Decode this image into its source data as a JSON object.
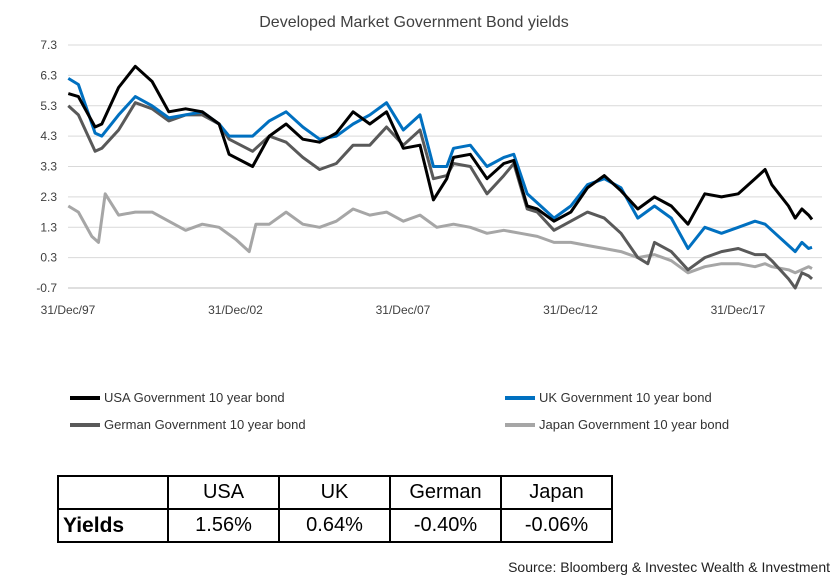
{
  "chart_data": {
    "type": "line",
    "title": "Developed Market Government Bond yields",
    "x_ticks": [
      "31/Dec/97",
      "31/Dec/02",
      "31/Dec/07",
      "31/Dec/12",
      "31/Dec/17"
    ],
    "y_ticks": [
      "7.3",
      "6.3",
      "5.3",
      "4.3",
      "3.3",
      "2.3",
      "1.3",
      "0.3",
      "-0.7"
    ],
    "ylim": [
      -0.7,
      7.3
    ],
    "x_range_years": [
      1997.99,
      2020.5
    ],
    "grid": "horizontal",
    "legend_position": "bottom",
    "series": [
      {
        "name": "USA Government 10 year bond",
        "color": "#000000",
        "points": [
          [
            1998.0,
            5.7
          ],
          [
            1998.3,
            5.6
          ],
          [
            1998.8,
            4.6
          ],
          [
            1999.0,
            4.7
          ],
          [
            1999.5,
            5.9
          ],
          [
            2000.0,
            6.6
          ],
          [
            2000.5,
            6.1
          ],
          [
            2001.0,
            5.1
          ],
          [
            2001.5,
            5.2
          ],
          [
            2002.0,
            5.1
          ],
          [
            2002.5,
            4.7
          ],
          [
            2002.8,
            3.7
          ],
          [
            2003.5,
            3.3
          ],
          [
            2004.0,
            4.3
          ],
          [
            2004.5,
            4.7
          ],
          [
            2005.0,
            4.2
          ],
          [
            2005.5,
            4.1
          ],
          [
            2006.0,
            4.4
          ],
          [
            2006.5,
            5.1
          ],
          [
            2007.0,
            4.7
          ],
          [
            2007.5,
            5.1
          ],
          [
            2008.0,
            3.9
          ],
          [
            2008.5,
            4.0
          ],
          [
            2008.9,
            2.2
          ],
          [
            2009.3,
            2.9
          ],
          [
            2009.5,
            3.6
          ],
          [
            2010.0,
            3.7
          ],
          [
            2010.5,
            2.9
          ],
          [
            2011.0,
            3.4
          ],
          [
            2011.3,
            3.5
          ],
          [
            2011.7,
            2.0
          ],
          [
            2012.0,
            1.9
          ],
          [
            2012.5,
            1.5
          ],
          [
            2013.0,
            1.8
          ],
          [
            2013.5,
            2.6
          ],
          [
            2014.0,
            3.0
          ],
          [
            2014.5,
            2.5
          ],
          [
            2015.0,
            1.9
          ],
          [
            2015.5,
            2.3
          ],
          [
            2016.0,
            2.0
          ],
          [
            2016.5,
            1.4
          ],
          [
            2017.0,
            2.4
          ],
          [
            2017.5,
            2.3
          ],
          [
            2018.0,
            2.4
          ],
          [
            2018.5,
            2.9
          ],
          [
            2018.8,
            3.2
          ],
          [
            2019.0,
            2.7
          ],
          [
            2019.5,
            2.0
          ],
          [
            2019.7,
            1.6
          ],
          [
            2019.9,
            1.9
          ],
          [
            2020.1,
            1.7
          ],
          [
            2020.2,
            1.56
          ]
        ]
      },
      {
        "name": "UK Government 10 year bond",
        "color": "#0070C0",
        "points": [
          [
            1998.0,
            6.2
          ],
          [
            1998.3,
            6.0
          ],
          [
            1998.8,
            4.4
          ],
          [
            1999.0,
            4.3
          ],
          [
            1999.5,
            5.0
          ],
          [
            2000.0,
            5.6
          ],
          [
            2000.5,
            5.3
          ],
          [
            2001.0,
            4.9
          ],
          [
            2001.5,
            5.0
          ],
          [
            2002.0,
            5.1
          ],
          [
            2002.5,
            4.7
          ],
          [
            2002.8,
            4.3
          ],
          [
            2003.5,
            4.3
          ],
          [
            2004.0,
            4.8
          ],
          [
            2004.5,
            5.1
          ],
          [
            2005.0,
            4.6
          ],
          [
            2005.5,
            4.2
          ],
          [
            2006.0,
            4.3
          ],
          [
            2006.5,
            4.7
          ],
          [
            2007.0,
            5.0
          ],
          [
            2007.5,
            5.4
          ],
          [
            2008.0,
            4.5
          ],
          [
            2008.5,
            5.0
          ],
          [
            2008.9,
            3.3
          ],
          [
            2009.3,
            3.3
          ],
          [
            2009.5,
            3.9
          ],
          [
            2010.0,
            4.0
          ],
          [
            2010.5,
            3.3
          ],
          [
            2011.0,
            3.6
          ],
          [
            2011.3,
            3.7
          ],
          [
            2011.7,
            2.4
          ],
          [
            2012.0,
            2.1
          ],
          [
            2012.5,
            1.6
          ],
          [
            2013.0,
            2.0
          ],
          [
            2013.5,
            2.7
          ],
          [
            2014.0,
            2.9
          ],
          [
            2014.5,
            2.6
          ],
          [
            2015.0,
            1.6
          ],
          [
            2015.5,
            2.0
          ],
          [
            2016.0,
            1.6
          ],
          [
            2016.5,
            0.6
          ],
          [
            2017.0,
            1.3
          ],
          [
            2017.5,
            1.1
          ],
          [
            2018.0,
            1.3
          ],
          [
            2018.5,
            1.5
          ],
          [
            2018.8,
            1.4
          ],
          [
            2019.0,
            1.2
          ],
          [
            2019.5,
            0.7
          ],
          [
            2019.7,
            0.5
          ],
          [
            2019.9,
            0.8
          ],
          [
            2020.1,
            0.6
          ],
          [
            2020.2,
            0.64
          ]
        ]
      },
      {
        "name": "German Government 10 year bond",
        "color": "#595959",
        "points": [
          [
            1998.0,
            5.3
          ],
          [
            1998.3,
            5.0
          ],
          [
            1998.8,
            3.8
          ],
          [
            1999.0,
            3.9
          ],
          [
            1999.5,
            4.5
          ],
          [
            2000.0,
            5.4
          ],
          [
            2000.5,
            5.2
          ],
          [
            2001.0,
            4.8
          ],
          [
            2001.5,
            5.0
          ],
          [
            2002.0,
            5.0
          ],
          [
            2002.5,
            4.7
          ],
          [
            2002.8,
            4.2
          ],
          [
            2003.5,
            3.8
          ],
          [
            2004.0,
            4.3
          ],
          [
            2004.5,
            4.1
          ],
          [
            2005.0,
            3.6
          ],
          [
            2005.5,
            3.2
          ],
          [
            2006.0,
            3.4
          ],
          [
            2006.5,
            4.0
          ],
          [
            2007.0,
            4.0
          ],
          [
            2007.5,
            4.6
          ],
          [
            2008.0,
            4.0
          ],
          [
            2008.5,
            4.5
          ],
          [
            2008.9,
            2.9
          ],
          [
            2009.3,
            3.0
          ],
          [
            2009.5,
            3.4
          ],
          [
            2010.0,
            3.3
          ],
          [
            2010.5,
            2.4
          ],
          [
            2011.0,
            3.0
          ],
          [
            2011.3,
            3.4
          ],
          [
            2011.7,
            1.9
          ],
          [
            2012.0,
            1.8
          ],
          [
            2012.5,
            1.2
          ],
          [
            2013.0,
            1.5
          ],
          [
            2013.5,
            1.8
          ],
          [
            2014.0,
            1.6
          ],
          [
            2014.5,
            1.1
          ],
          [
            2015.0,
            0.3
          ],
          [
            2015.3,
            0.1
          ],
          [
            2015.5,
            0.8
          ],
          [
            2016.0,
            0.5
          ],
          [
            2016.5,
            -0.1
          ],
          [
            2017.0,
            0.3
          ],
          [
            2017.5,
            0.5
          ],
          [
            2018.0,
            0.6
          ],
          [
            2018.5,
            0.4
          ],
          [
            2018.8,
            0.4
          ],
          [
            2019.0,
            0.2
          ],
          [
            2019.5,
            -0.4
          ],
          [
            2019.7,
            -0.7
          ],
          [
            2019.9,
            -0.2
          ],
          [
            2020.1,
            -0.3
          ],
          [
            2020.2,
            -0.4
          ]
        ]
      },
      {
        "name": "Japan Government 10 year bond",
        "color": "#A6A6A6",
        "points": [
          [
            1998.0,
            2.0
          ],
          [
            1998.3,
            1.8
          ],
          [
            1998.7,
            1.0
          ],
          [
            1998.9,
            0.8
          ],
          [
            1999.1,
            2.4
          ],
          [
            1999.5,
            1.7
          ],
          [
            2000.0,
            1.8
          ],
          [
            2000.5,
            1.8
          ],
          [
            2001.0,
            1.5
          ],
          [
            2001.5,
            1.2
          ],
          [
            2002.0,
            1.4
          ],
          [
            2002.5,
            1.3
          ],
          [
            2003.0,
            0.9
          ],
          [
            2003.4,
            0.5
          ],
          [
            2003.6,
            1.4
          ],
          [
            2004.0,
            1.4
          ],
          [
            2004.5,
            1.8
          ],
          [
            2005.0,
            1.4
          ],
          [
            2005.5,
            1.3
          ],
          [
            2006.0,
            1.5
          ],
          [
            2006.5,
            1.9
          ],
          [
            2007.0,
            1.7
          ],
          [
            2007.5,
            1.8
          ],
          [
            2008.0,
            1.5
          ],
          [
            2008.5,
            1.7
          ],
          [
            2009.0,
            1.3
          ],
          [
            2009.5,
            1.4
          ],
          [
            2010.0,
            1.3
          ],
          [
            2010.5,
            1.1
          ],
          [
            2011.0,
            1.2
          ],
          [
            2011.5,
            1.1
          ],
          [
            2012.0,
            1.0
          ],
          [
            2012.5,
            0.8
          ],
          [
            2013.0,
            0.8
          ],
          [
            2013.5,
            0.7
          ],
          [
            2014.0,
            0.6
          ],
          [
            2014.5,
            0.5
          ],
          [
            2015.0,
            0.3
          ],
          [
            2015.5,
            0.4
          ],
          [
            2016.0,
            0.2
          ],
          [
            2016.5,
            -0.2
          ],
          [
            2017.0,
            0.0
          ],
          [
            2017.5,
            0.1
          ],
          [
            2018.0,
            0.1
          ],
          [
            2018.5,
            0.0
          ],
          [
            2018.8,
            0.1
          ],
          [
            2019.0,
            0.0
          ],
          [
            2019.5,
            -0.1
          ],
          [
            2019.7,
            -0.2
          ],
          [
            2019.9,
            -0.1
          ],
          [
            2020.1,
            0.0
          ],
          [
            2020.2,
            -0.06
          ]
        ]
      }
    ]
  },
  "table": {
    "headers": [
      "",
      "USA",
      "UK",
      "German",
      "Japan"
    ],
    "row_label": "Yields",
    "values": [
      "1.56%",
      "0.64%",
      "-0.40%",
      "-0.06%"
    ]
  },
  "source": "Source: Bloomberg & Investec Wealth & Investment"
}
